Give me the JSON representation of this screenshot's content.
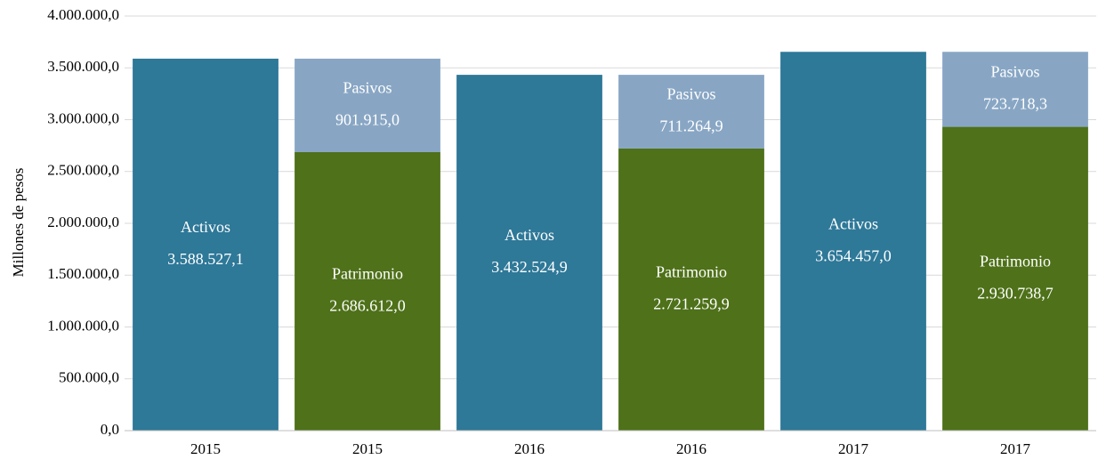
{
  "chart_data": {
    "type": "stacked_bar",
    "ylabel": "Millones  de pesos",
    "categories": [
      "2015",
      "2015",
      "2016",
      "2016",
      "2017",
      "2017"
    ],
    "series": [
      {
        "name": "Activos",
        "color": "#2e7898",
        "values": [
          3588527.1,
          null,
          3432524.9,
          null,
          3654457.0,
          null
        ],
        "value_labels": [
          "3.588.527,1",
          null,
          "3.432.524,9",
          null,
          "3.654.457,0",
          null
        ]
      },
      {
        "name": "Patrimonio",
        "color": "#4e7119",
        "values": [
          null,
          2686612.0,
          null,
          2721259.9,
          null,
          2930738.7
        ],
        "value_labels": [
          null,
          "2.686.612,0",
          null,
          "2.721.259,9",
          null,
          "2.930.738,7"
        ]
      },
      {
        "name": "Pasivos",
        "color": "#88a6c4",
        "values": [
          null,
          901915.0,
          null,
          711264.9,
          null,
          723718.3
        ],
        "value_labels": [
          null,
          "901.915,0",
          null,
          "711.264,9",
          null,
          "723.718,3"
        ]
      }
    ],
    "ylim": [
      0,
      4000000
    ],
    "yticks": [
      {
        "value": 0,
        "label": "0,0"
      },
      {
        "value": 500000,
        "label": "500.000,0"
      },
      {
        "value": 1000000,
        "label": "1.000.000,0"
      },
      {
        "value": 1500000,
        "label": "1.500.000,0"
      },
      {
        "value": 2000000,
        "label": "2.000.000,0"
      },
      {
        "value": 2500000,
        "label": "2.500.000,0"
      },
      {
        "value": 3000000,
        "label": "3.000.000,0"
      },
      {
        "value": 3500000,
        "label": "3.500.000,0"
      },
      {
        "value": 4000000,
        "label": "4.000.000,0"
      }
    ],
    "grid": true
  }
}
